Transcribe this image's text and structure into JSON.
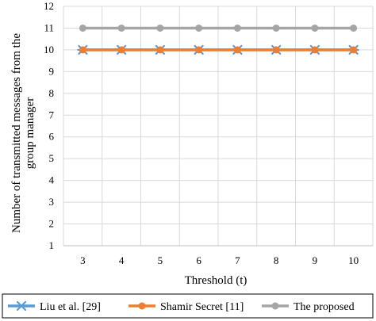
{
  "chart_data": {
    "type": "line",
    "title": "",
    "xlabel": "Threshold (t)",
    "ylabel_lines": [
      "Number of transmitted messages from the",
      "group manager"
    ],
    "x": [
      3,
      4,
      5,
      6,
      7,
      8,
      9,
      10
    ],
    "ylim": [
      1,
      12
    ],
    "yticks": [
      1,
      2,
      3,
      4,
      5,
      6,
      7,
      8,
      9,
      10,
      11,
      12
    ],
    "grid": true,
    "legend_position": "bottom",
    "series": [
      {
        "name": "Liu et al. [29]",
        "values": [
          10,
          10,
          10,
          10,
          10,
          10,
          10,
          10
        ],
        "color": "#5b9bd5",
        "marker": "x"
      },
      {
        "name": "Shamir Secret [11]",
        "values": [
          10,
          10,
          10,
          10,
          10,
          10,
          10,
          10
        ],
        "color": "#ed7d31",
        "marker": "circle"
      },
      {
        "name": "The proposed",
        "values": [
          11,
          11,
          11,
          11,
          11,
          11,
          11,
          11
        ],
        "color": "#a5a5a5",
        "marker": "circle"
      }
    ]
  }
}
